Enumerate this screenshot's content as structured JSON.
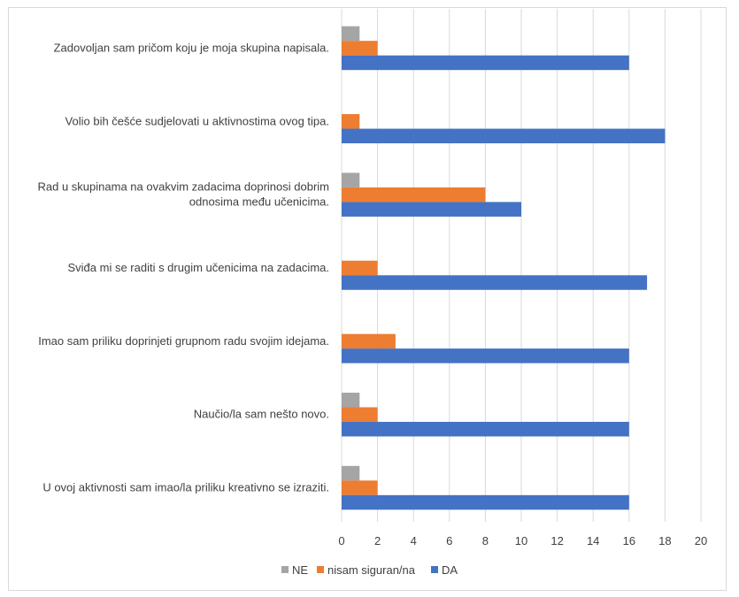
{
  "chart_data": {
    "type": "bar",
    "orientation": "horizontal",
    "categories": [
      "Zadovoljan sam pričom koju je moja skupina napisala.",
      "Volio bih češće sudjelovati u aktivnostima ovog tipa.",
      "Rad u skupinama na ovakvim zadacima doprinosi dobrim odnosima među učenicima.",
      "Sviđa mi se raditi s drugim učenicima na zadacima.",
      "Imao sam priliku doprinjeti grupnom radu svojim idejama.",
      "Naučio/la sam nešto novo.",
      "U ovoj aktivnosti sam imao/la priliku kreativno se izraziti."
    ],
    "category_lines": [
      [
        "Zadovoljan sam pričom koju je moja skupina napisala."
      ],
      [
        "Volio bih češće sudjelovati u aktivnostima ovog tipa."
      ],
      [
        "Rad u skupinama na ovakvim zadacima doprinosi dobrim",
        "odnosima među učenicima."
      ],
      [
        "Sviđa mi se raditi s drugim učenicima na zadacima."
      ],
      [
        "Imao sam priliku doprinjeti grupnom radu svojim idejama."
      ],
      [
        "Naučio/la sam nešto novo."
      ],
      [
        "U ovoj aktivnosti sam imao/la priliku kreativno se izraziti."
      ]
    ],
    "series": [
      {
        "name": "NE",
        "color": "#a5a5a5",
        "values": [
          1,
          0,
          1,
          0,
          0,
          1,
          1
        ]
      },
      {
        "name": "nisam siguran/na",
        "color": "#ed7d31",
        "values": [
          2,
          1,
          8,
          2,
          3,
          2,
          2
        ]
      },
      {
        "name": "DA",
        "color": "#4472c4",
        "values": [
          16,
          18,
          10,
          17,
          16,
          16,
          16
        ]
      }
    ],
    "xlim": [
      0,
      20
    ],
    "xticks": [
      0,
      2,
      4,
      6,
      8,
      10,
      12,
      14,
      16,
      18,
      20
    ],
    "grid": true,
    "legend_position": "bottom"
  }
}
